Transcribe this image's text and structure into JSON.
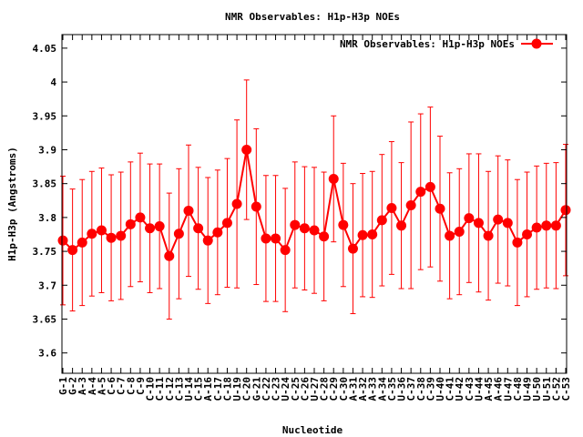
{
  "chart_data": {
    "type": "line",
    "title": "NMR Observables: H1p-H3p NOEs",
    "xlabel": "Nucleotide",
    "ylabel": "H1p-H3p (Angstroms)",
    "ylim": [
      3.57,
      4.07
    ],
    "yticks": [
      "3.6",
      "3.65",
      "3.7",
      "3.75",
      "3.8",
      "3.85",
      "3.9",
      "3.95",
      "4",
      "4.05"
    ],
    "grid": false,
    "legend_position": "top-right",
    "series_color": "#ff0000",
    "categories": [
      "G-1",
      "G-2",
      "A-3",
      "A-4",
      "A-5",
      "C-6",
      "C-7",
      "C-8",
      "C-9",
      "C-10",
      "C-11",
      "C-12",
      "C-13",
      "U-14",
      "C-15",
      "A-16",
      "C-17",
      "C-18",
      "U-19",
      "C-20",
      "G-21",
      "C-22",
      "C-23",
      "U-24",
      "C-25",
      "C-26",
      "U-27",
      "C-28",
      "C-29",
      "C-30",
      "A-31",
      "A-32",
      "A-33",
      "A-34",
      "C-35",
      "U-36",
      "C-37",
      "C-38",
      "C-39",
      "U-40",
      "C-41",
      "U-42",
      "C-43",
      "U-44",
      "A-45",
      "A-46",
      "U-47",
      "C-48",
      "U-49",
      "U-50",
      "U-51",
      "C-52",
      "C-53"
    ],
    "series": [
      {
        "name": "NMR Observables: H1p-H3p NOEs",
        "values": [
          3.766,
          3.752,
          3.763,
          3.776,
          3.781,
          3.77,
          3.773,
          3.79,
          3.8,
          3.784,
          3.787,
          3.743,
          3.776,
          3.81,
          3.784,
          3.766,
          3.778,
          3.792,
          3.82,
          3.9,
          3.816,
          3.769,
          3.769,
          3.752,
          3.789,
          3.784,
          3.781,
          3.772,
          3.857,
          3.789,
          3.754,
          3.774,
          3.775,
          3.796,
          3.814,
          3.788,
          3.818,
          3.838,
          3.845,
          3.813,
          3.773,
          3.779,
          3.799,
          3.792,
          3.773,
          3.797,
          3.792,
          3.763,
          3.775,
          3.785,
          3.788,
          3.788,
          3.811
        ],
        "errors": [
          0.095,
          0.09,
          0.093,
          0.092,
          0.092,
          0.093,
          0.094,
          0.092,
          0.095,
          0.095,
          0.092,
          0.093,
          0.096,
          0.097,
          0.09,
          0.093,
          0.092,
          0.095,
          0.124,
          0.103,
          0.115,
          0.093,
          0.093,
          0.091,
          0.093,
          0.091,
          0.093,
          0.095,
          0.093,
          0.091,
          0.096,
          0.091,
          0.093,
          0.097,
          0.098,
          0.093,
          0.123,
          0.115,
          0.118,
          0.107,
          0.093,
          0.093,
          0.095,
          0.102,
          0.095,
          0.094,
          0.093,
          0.093,
          0.092,
          0.091,
          0.092,
          0.093,
          0.097
        ]
      }
    ]
  }
}
